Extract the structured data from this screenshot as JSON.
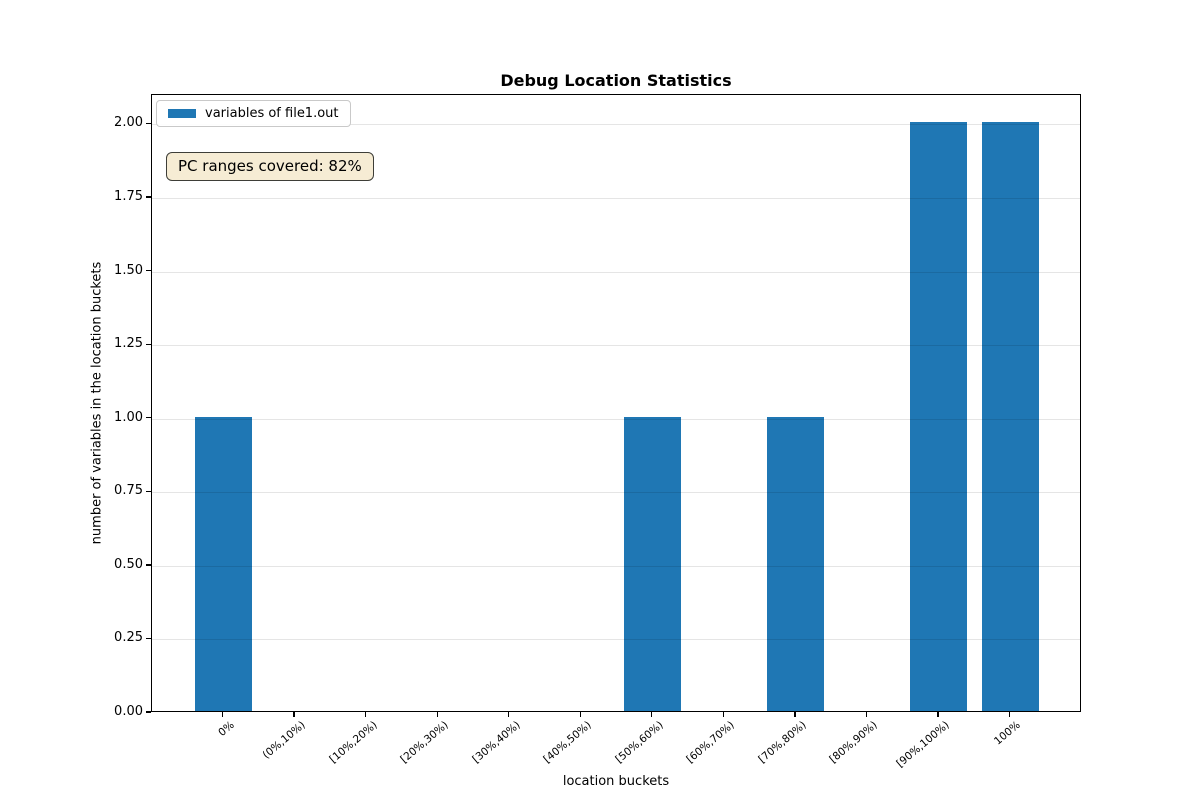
{
  "legend": {
    "label": "variables of file1.out",
    "swatch_color": "#1f77b4"
  },
  "annotation": {
    "text": "PC ranges covered: 82%",
    "bg_color": "#f6ecd4",
    "border_color": "#3e3e38"
  },
  "chart_data": {
    "type": "bar",
    "title": "Debug Location Statistics",
    "xlabel": "location buckets",
    "ylabel": "number of variables in the location buckets",
    "categories": [
      "0%",
      "(0%,10%)",
      "[10%,20%)",
      "[20%,30%)",
      "[30%,40%)",
      "[40%,50%)",
      "[50%,60%)",
      "[60%,70%)",
      "[70%,80%)",
      "[80%,90%)",
      "[90%,100%)",
      "100%"
    ],
    "series": [
      {
        "name": "variables of file1.out",
        "color": "#1f77b4",
        "values": [
          1,
          0,
          0,
          0,
          0,
          0,
          1,
          0,
          1,
          0,
          2,
          2
        ]
      }
    ],
    "ylim": [
      0,
      2.1
    ],
    "yticks": [
      0.0,
      0.25,
      0.5,
      0.75,
      1.0,
      1.25,
      1.5,
      1.75,
      2.0
    ],
    "ytick_labels": [
      "0.00",
      "0.25",
      "0.50",
      "0.75",
      "1.00",
      "1.25",
      "1.50",
      "1.75",
      "2.00"
    ],
    "grid": "horizontal",
    "legend_position": "upper left",
    "xtick_rotation": 40
  }
}
